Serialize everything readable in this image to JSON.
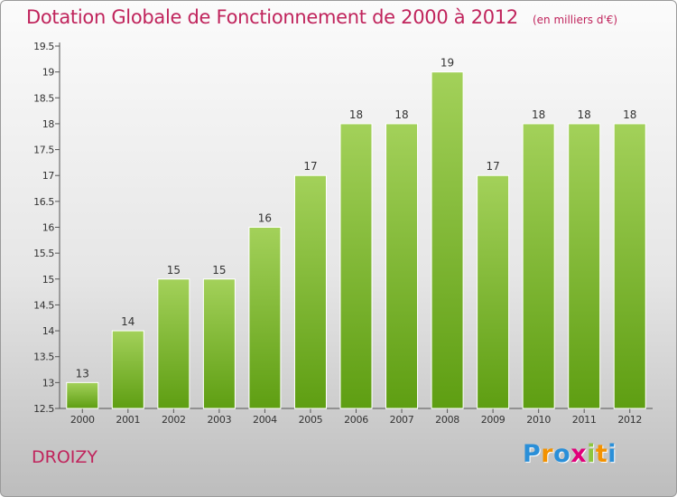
{
  "title": "Dotation Globale de Fonctionnement de 2000 à 2012",
  "subtitle": "(en milliers d'€)",
  "commune": "DROIZY",
  "logo": {
    "text": "Proxiti",
    "letters": [
      {
        "ch": "P",
        "color": "#2a8fd8"
      },
      {
        "ch": "r",
        "color": "#f39200"
      },
      {
        "ch": "o",
        "color": "#2a8fd8"
      },
      {
        "ch": "x",
        "color": "#e0007a"
      },
      {
        "ch": "i",
        "color": "#8dc63f"
      },
      {
        "ch": "t",
        "color": "#f39200"
      },
      {
        "ch": "i",
        "color": "#2a8fd8"
      }
    ]
  },
  "chart_data": {
    "type": "bar",
    "title": "Dotation Globale de Fonctionnement de 2000 à 2012",
    "subtitle": "(en milliers d'€)",
    "categories": [
      "2000",
      "2001",
      "2002",
      "2003",
      "2004",
      "2005",
      "2006",
      "2007",
      "2008",
      "2009",
      "2010",
      "2011",
      "2012"
    ],
    "values": [
      13,
      14,
      15,
      15,
      16,
      17,
      18,
      18,
      19,
      17,
      18,
      18,
      18
    ],
    "data_labels": [
      "13",
      "14",
      "15",
      "15",
      "16",
      "17",
      "18",
      "18",
      "19",
      "17",
      "18",
      "18",
      "18"
    ],
    "ylim": [
      12.5,
      19.5
    ],
    "yticks": [
      "12.5",
      "13",
      "13.5",
      "14",
      "14.5",
      "15",
      "15.5",
      "16",
      "16.5",
      "17",
      "17.5",
      "18",
      "18.5",
      "19",
      "19.5"
    ],
    "grid": false,
    "bar_color_top": "#a3d15a",
    "bar_color_bottom": "#5e9e12",
    "xlabel": "",
    "ylabel": ""
  }
}
